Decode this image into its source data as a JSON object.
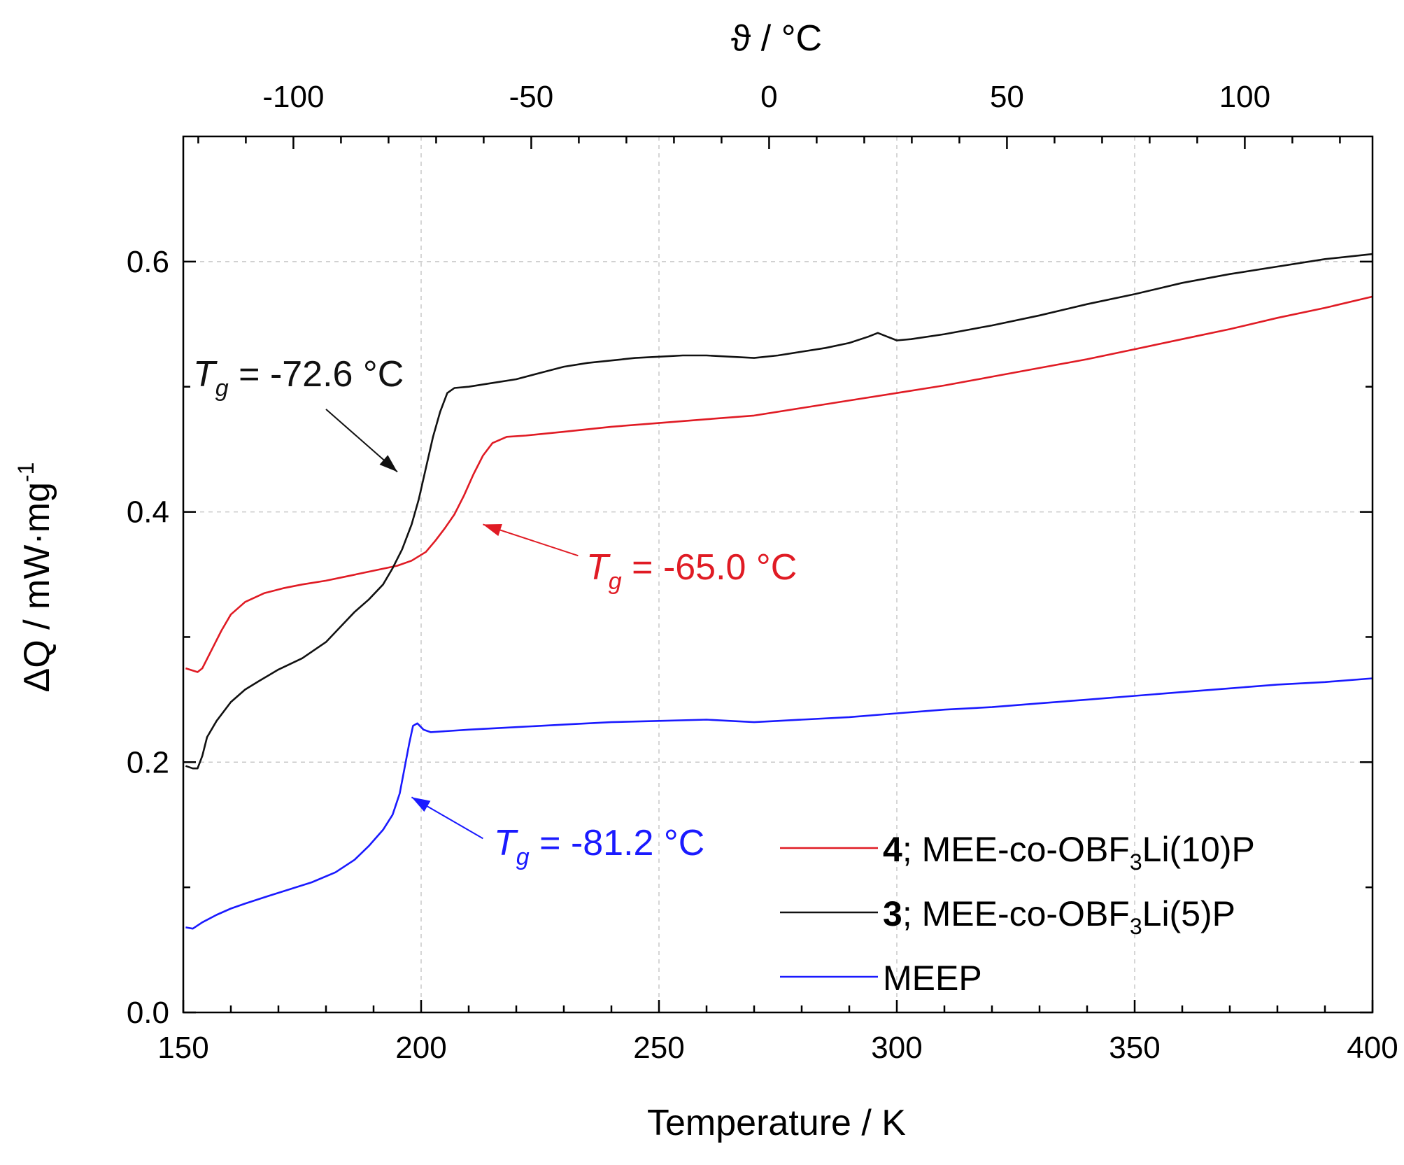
{
  "chart_data": {
    "type": "line",
    "title": "",
    "xlabel": "Temperature / K",
    "x2label": "ϑ / °C",
    "ylabel": "ΔQ / mW·mg",
    "ylabel_sup": "-1",
    "xlim": [
      150,
      400
    ],
    "x2_offset": -273.15,
    "ylim": [
      0,
      0.7
    ],
    "grid": true,
    "x_ticks": [
      150,
      200,
      250,
      300,
      350,
      400
    ],
    "x_tick_labels": [
      "150",
      "200",
      "250",
      "300",
      "350",
      "400"
    ],
    "x2_ticks": [
      -100,
      -50,
      0,
      50,
      100
    ],
    "x2_tick_labels": [
      "-100",
      "-50",
      "0",
      "50",
      "100"
    ],
    "y_ticks": [
      0,
      0.2,
      0.4,
      0.6
    ],
    "y_tick_labels": [
      "0.0",
      "0.2",
      "0.4",
      "0.6"
    ],
    "series": [
      {
        "key": "s4",
        "name_bold": "4",
        "name_pre": "; MEE-co-OBF",
        "name_sub": "3",
        "name_post": "Li(10)P",
        "color": "#e01b24",
        "points": [
          [
            150.5,
            0.275
          ],
          [
            153,
            0.272
          ],
          [
            154,
            0.275
          ],
          [
            156,
            0.29
          ],
          [
            158,
            0.305
          ],
          [
            160,
            0.318
          ],
          [
            163,
            0.328
          ],
          [
            167,
            0.335
          ],
          [
            171,
            0.339
          ],
          [
            175,
            0.342
          ],
          [
            180,
            0.345
          ],
          [
            185,
            0.349
          ],
          [
            190,
            0.353
          ],
          [
            195,
            0.357
          ],
          [
            198,
            0.361
          ],
          [
            201,
            0.368
          ],
          [
            203,
            0.377
          ],
          [
            205,
            0.387
          ],
          [
            207,
            0.398
          ],
          [
            209,
            0.413
          ],
          [
            211,
            0.43
          ],
          [
            213,
            0.445
          ],
          [
            215,
            0.455
          ],
          [
            218,
            0.46
          ],
          [
            222,
            0.461
          ],
          [
            230,
            0.464
          ],
          [
            240,
            0.468
          ],
          [
            250,
            0.471
          ],
          [
            260,
            0.474
          ],
          [
            270,
            0.477
          ],
          [
            280,
            0.483
          ],
          [
            290,
            0.489
          ],
          [
            300,
            0.495
          ],
          [
            310,
            0.501
          ],
          [
            320,
            0.508
          ],
          [
            330,
            0.515
          ],
          [
            340,
            0.522
          ],
          [
            350,
            0.53
          ],
          [
            360,
            0.538
          ],
          [
            370,
            0.546
          ],
          [
            380,
            0.555
          ],
          [
            390,
            0.563
          ],
          [
            400,
            0.572
          ]
        ]
      },
      {
        "key": "s3",
        "name_bold": "3",
        "name_pre": "; MEE-co-OBF",
        "name_sub": "3",
        "name_post": "Li(5)P",
        "color": "#111111",
        "points": [
          [
            150.5,
            0.197
          ],
          [
            152,
            0.195
          ],
          [
            153,
            0.195
          ],
          [
            154,
            0.205
          ],
          [
            155,
            0.22
          ],
          [
            157,
            0.233
          ],
          [
            160,
            0.248
          ],
          [
            163,
            0.258
          ],
          [
            166,
            0.265
          ],
          [
            170,
            0.274
          ],
          [
            175,
            0.283
          ],
          [
            180,
            0.296
          ],
          [
            183,
            0.308
          ],
          [
            186,
            0.32
          ],
          [
            189,
            0.33
          ],
          [
            192,
            0.342
          ],
          [
            194,
            0.355
          ],
          [
            196,
            0.37
          ],
          [
            198,
            0.39
          ],
          [
            199.5,
            0.41
          ],
          [
            201,
            0.435
          ],
          [
            202.5,
            0.46
          ],
          [
            204,
            0.48
          ],
          [
            205.5,
            0.495
          ],
          [
            207,
            0.499
          ],
          [
            210,
            0.5
          ],
          [
            215,
            0.503
          ],
          [
            220,
            0.506
          ],
          [
            225,
            0.511
          ],
          [
            230,
            0.516
          ],
          [
            235,
            0.519
          ],
          [
            240,
            0.521
          ],
          [
            245,
            0.523
          ],
          [
            250,
            0.524
          ],
          [
            255,
            0.525
          ],
          [
            260,
            0.525
          ],
          [
            265,
            0.524
          ],
          [
            270,
            0.523
          ],
          [
            275,
            0.525
          ],
          [
            280,
            0.528
          ],
          [
            285,
            0.531
          ],
          [
            290,
            0.535
          ],
          [
            294,
            0.54
          ],
          [
            296,
            0.543
          ],
          [
            298,
            0.54
          ],
          [
            300,
            0.537
          ],
          [
            303,
            0.538
          ],
          [
            310,
            0.542
          ],
          [
            320,
            0.549
          ],
          [
            330,
            0.557
          ],
          [
            340,
            0.566
          ],
          [
            350,
            0.574
          ],
          [
            360,
            0.583
          ],
          [
            370,
            0.59
          ],
          [
            380,
            0.596
          ],
          [
            390,
            0.602
          ],
          [
            400,
            0.606
          ]
        ]
      },
      {
        "key": "meep",
        "name_bold": "",
        "name_pre": "MEEP",
        "name_sub": "",
        "name_post": "",
        "color": "#1a1aff",
        "points": [
          [
            150.5,
            0.068
          ],
          [
            152,
            0.067
          ],
          [
            154,
            0.072
          ],
          [
            157,
            0.078
          ],
          [
            160,
            0.083
          ],
          [
            163,
            0.087
          ],
          [
            167,
            0.092
          ],
          [
            172,
            0.098
          ],
          [
            177,
            0.104
          ],
          [
            182,
            0.112
          ],
          [
            186,
            0.122
          ],
          [
            189,
            0.133
          ],
          [
            192,
            0.146
          ],
          [
            194,
            0.158
          ],
          [
            195.5,
            0.175
          ],
          [
            196.5,
            0.195
          ],
          [
            197.5,
            0.215
          ],
          [
            198.3,
            0.229
          ],
          [
            199.2,
            0.231
          ],
          [
            200.5,
            0.226
          ],
          [
            202,
            0.224
          ],
          [
            210,
            0.226
          ],
          [
            220,
            0.228
          ],
          [
            230,
            0.23
          ],
          [
            240,
            0.232
          ],
          [
            250,
            0.233
          ],
          [
            260,
            0.234
          ],
          [
            265,
            0.233
          ],
          [
            270,
            0.232
          ],
          [
            275,
            0.233
          ],
          [
            280,
            0.234
          ],
          [
            290,
            0.236
          ],
          [
            300,
            0.239
          ],
          [
            310,
            0.242
          ],
          [
            320,
            0.244
          ],
          [
            330,
            0.247
          ],
          [
            340,
            0.25
          ],
          [
            350,
            0.253
          ],
          [
            360,
            0.256
          ],
          [
            370,
            0.259
          ],
          [
            380,
            0.262
          ],
          [
            390,
            0.264
          ],
          [
            400,
            0.267
          ]
        ]
      }
    ],
    "annotations": [
      {
        "key": "a3",
        "label": "T",
        "sub": "g",
        "value": " = -72.6 °C",
        "color": "#111111",
        "tail": [
          180,
          0.482
        ],
        "head": [
          195,
          0.432
        ]
      },
      {
        "key": "a4",
        "label": "T",
        "sub": "g",
        "value": " = -65.0 °C",
        "color": "#e01b24",
        "tail": [
          233,
          0.365
        ],
        "head": [
          213,
          0.39
        ]
      },
      {
        "key": "ameep",
        "label": "T",
        "sub": "g",
        "value": " = -81.2 °C",
        "color": "#1a1aff",
        "tail": [
          213,
          0.139
        ],
        "head": [
          198,
          0.172
        ]
      }
    ]
  }
}
